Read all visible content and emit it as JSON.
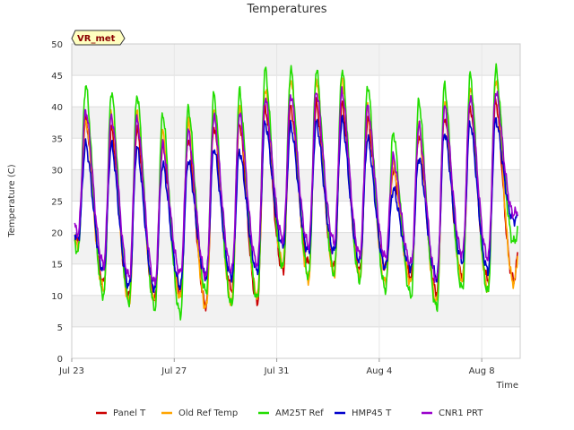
{
  "chart_data": {
    "type": "line",
    "title": "Temperatures",
    "xlabel": "Time",
    "ylabel": "Temperature (C)",
    "ylim": [
      0,
      50
    ],
    "y_ticks": [
      0,
      5,
      10,
      15,
      20,
      25,
      30,
      35,
      40,
      45,
      50
    ],
    "xlim": [
      0,
      17.5
    ],
    "x_ticks": [
      {
        "day": 0,
        "label": "Jul 23"
      },
      {
        "day": 4,
        "label": "Jul 27"
      },
      {
        "day": 8,
        "label": "Jul 31"
      },
      {
        "day": 12,
        "label": "Aug 4"
      },
      {
        "day": 16,
        "label": "Aug 8"
      }
    ],
    "grid": true,
    "legend_position": "bottom",
    "badge": "VR_met",
    "days": 18,
    "series": [
      {
        "name": "Panel T",
        "color": "#cc0000",
        "min": [
          18.5,
          12.0,
          10.0,
          9.5,
          10.5,
          8.5,
          11.0,
          9.0,
          14.0,
          15.0,
          14.5,
          14.0,
          14.5,
          13.0,
          10.5,
          13.0,
          12.5,
          12.5
        ],
        "max": [
          38.0,
          36.5,
          36.5,
          34.0,
          35.0,
          37.0,
          37.5,
          40.0,
          40.0,
          40.5,
          40.5,
          38.0,
          30.0,
          35.5,
          38.5,
          40.0,
          41.0,
          21.0
        ]
      },
      {
        "name": "Old Ref Temp",
        "color": "#ffa500",
        "min": [
          18.0,
          11.0,
          9.0,
          9.0,
          9.5,
          8.0,
          9.0,
          10.0,
          15.0,
          12.5,
          13.5,
          13.0,
          12.0,
          12.0,
          9.0,
          12.5,
          11.0,
          12.0
        ],
        "max": [
          38.0,
          39.0,
          39.0,
          36.0,
          37.5,
          39.5,
          40.0,
          43.0,
          44.5,
          44.5,
          44.5,
          40.0,
          31.0,
          37.0,
          40.5,
          43.0,
          44.5,
          21.0
        ]
      },
      {
        "name": "AM25T Ref",
        "color": "#22dd00",
        "min": [
          17.0,
          10.0,
          9.0,
          8.0,
          7.0,
          10.5,
          8.5,
          9.5,
          14.5,
          13.0,
          13.5,
          12.5,
          11.0,
          10.0,
          8.0,
          11.0,
          10.5,
          18.5
        ],
        "max": [
          43.5,
          42.5,
          42.0,
          39.0,
          40.0,
          42.0,
          42.5,
          46.0,
          46.0,
          46.0,
          46.0,
          43.5,
          36.0,
          41.0,
          43.5,
          45.0,
          46.0,
          22.0
        ]
      },
      {
        "name": "HMP45 T",
        "color": "#0000cc",
        "min": [
          19.0,
          14.0,
          11.5,
          11.0,
          11.5,
          13.0,
          13.0,
          14.0,
          18.0,
          17.0,
          17.0,
          15.5,
          14.5,
          14.5,
          13.0,
          15.5,
          14.0,
          22.0
        ],
        "max": [
          34.0,
          34.0,
          33.5,
          31.0,
          31.5,
          33.5,
          33.0,
          37.5,
          37.0,
          37.5,
          38.0,
          35.0,
          27.0,
          32.0,
          36.0,
          37.5,
          38.0,
          23.0
        ]
      },
      {
        "name": "CNR1 PRT",
        "color": "#9900cc",
        "min": [
          20.0,
          15.0,
          13.0,
          12.0,
          13.5,
          13.0,
          14.0,
          15.0,
          19.0,
          18.0,
          18.5,
          16.5,
          16.0,
          15.0,
          12.5,
          16.5,
          16.0,
          23.0
        ],
        "max": [
          39.5,
          38.5,
          38.0,
          34.0,
          36.0,
          38.5,
          39.0,
          41.5,
          42.0,
          42.5,
          42.5,
          40.0,
          32.0,
          37.0,
          40.0,
          41.5,
          42.5,
          24.0
        ]
      }
    ]
  }
}
